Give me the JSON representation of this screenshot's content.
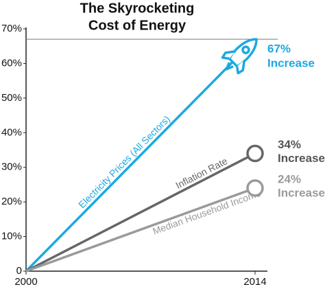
{
  "chart_data": {
    "type": "line",
    "title": [
      "The Skyrocketing",
      "Cost of Energy"
    ],
    "x": [
      2000,
      2014
    ],
    "xlim": [
      2000,
      2014
    ],
    "xticks": [
      2000,
      2014
    ],
    "ylim": [
      0,
      70
    ],
    "yticks": [
      0,
      {
        "value": 10,
        "label": "10%"
      },
      {
        "value": 20,
        "label": "20%"
      },
      {
        "value": 30,
        "label": "30%"
      },
      {
        "value": 40,
        "label": "40%"
      },
      {
        "value": 50,
        "label": "50%"
      },
      {
        "value": 60,
        "label": "60%"
      },
      {
        "value": 70,
        "label": "70%"
      }
    ],
    "series": [
      {
        "name": "Electricity Prices (All Sectors)",
        "color": "#1ba9e1",
        "values": [
          0,
          67
        ],
        "end_label": [
          "67%",
          "Increase"
        ],
        "label_color": "#1ba9e1",
        "marker": "rocket"
      },
      {
        "name": "Inflation Rate",
        "color": "#666666",
        "values": [
          0,
          34
        ],
        "end_label": [
          "34%",
          "Increase"
        ],
        "label_color": "#555555",
        "marker": "circle"
      },
      {
        "name": "Median Household Income",
        "color": "#9a9a9a",
        "values": [
          0,
          24
        ],
        "end_label": [
          "24%",
          "Increase"
        ],
        "label_color": "#9a9a9a",
        "marker": "circle"
      }
    ]
  }
}
